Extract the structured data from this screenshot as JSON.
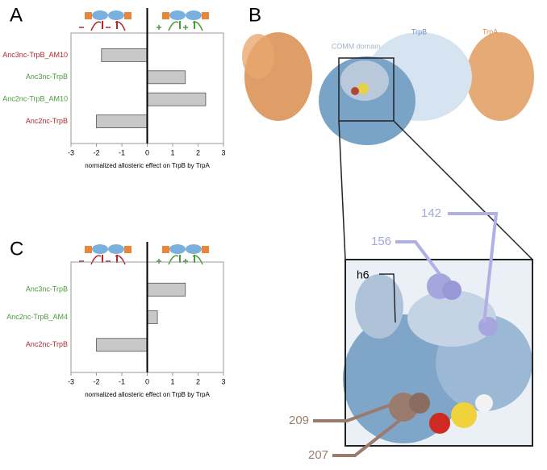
{
  "chart_data": [
    {
      "type": "bar",
      "orientation": "horizontal",
      "panel": "A",
      "categories": [
        "Anc3nc-TrpB_AM10",
        "Anc3nc-TrpB",
        "Anc2nc-TrpB_AM10",
        "Anc2nc-TrpB"
      ],
      "category_colors": [
        "#b3282d",
        "#4b9a3c",
        "#4b9a3c",
        "#b3282d"
      ],
      "values": [
        -1.8,
        1.5,
        2.3,
        -2.0
      ],
      "color": "#c8c8c8",
      "xlim": [
        -3,
        3
      ],
      "xticks": [
        -3,
        -2,
        -1,
        0,
        1,
        2,
        3
      ],
      "xlabel": "normalized allosteric effect on TrpB by TrpA"
    },
    {
      "type": "bar",
      "orientation": "horizontal",
      "panel": "C",
      "categories": [
        "Anc3nc-TrpB",
        "Anc2nc-TrpB_AM4",
        "Anc2nc-TrpB"
      ],
      "category_colors": [
        "#4b9a3c",
        "#4b9a3c",
        "#b3282d"
      ],
      "values": [
        1.5,
        0.4,
        -2.0
      ],
      "color": "#c8c8c8",
      "xlim": [
        -3,
        3
      ],
      "xticks": [
        -3,
        -2,
        -1,
        0,
        1,
        2,
        3
      ],
      "xlabel": "normalized allosteric effect on TrpB by TrpA"
    }
  ],
  "structure": {
    "panel": "B",
    "comm": "COMM domain",
    "trpb": "TrpB",
    "trpa": "TrpA",
    "residues": {
      "r142": "142",
      "r156": "156",
      "h6": "h6",
      "r209": "209",
      "r207": "207"
    }
  }
}
